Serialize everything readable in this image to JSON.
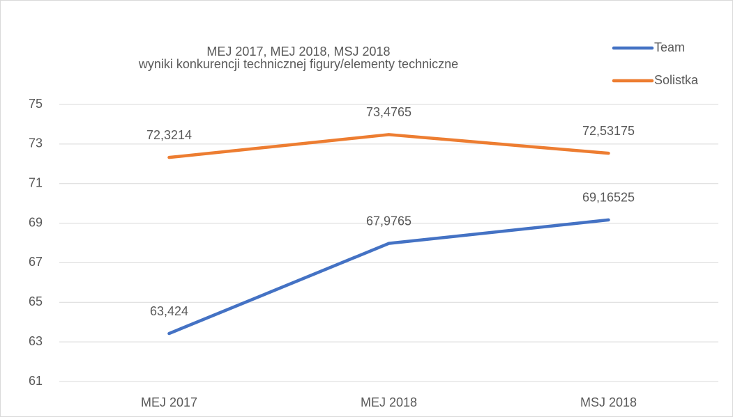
{
  "chart_data": {
    "type": "line",
    "title": "MEJ 2017, MEJ 2018, MSJ 2018",
    "subtitle": "wyniki konkurencji technicznej figury/elementy techniczne",
    "categories": [
      "MEJ 2017",
      "MEJ 2018",
      "MSJ 2018"
    ],
    "series": [
      {
        "name": "Team",
        "color": "#4472c4",
        "values": [
          63.424,
          67.9765,
          69.16525
        ],
        "value_labels": [
          "63,424",
          "67,9765",
          "69,16525"
        ]
      },
      {
        "name": "Solistka",
        "color": "#ed7d31",
        "values": [
          72.3214,
          73.4765,
          72.53175
        ],
        "value_labels": [
          "72,3214",
          "73,4765",
          "72,53175"
        ]
      }
    ],
    "ylim": [
      61,
      75
    ],
    "yticks": [
      61,
      63,
      65,
      67,
      69,
      71,
      73,
      75
    ],
    "grid": true,
    "legend": "top-right"
  }
}
